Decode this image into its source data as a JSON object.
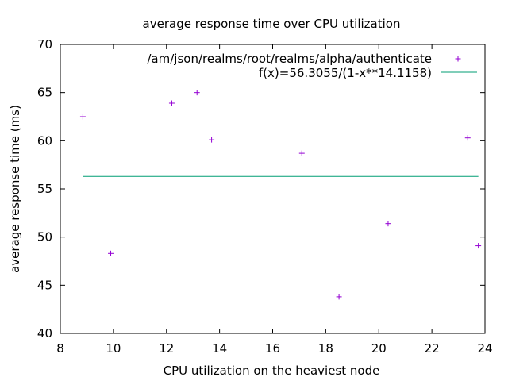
{
  "chart_data": {
    "type": "scatter",
    "title": "average response time over CPU utilization",
    "xlabel": "CPU utilization on the heaviest node",
    "ylabel": "average response time (ms)",
    "xlim": [
      8,
      24
    ],
    "ylim": [
      40,
      70
    ],
    "xticks": [
      8,
      10,
      12,
      14,
      16,
      18,
      20,
      22,
      24
    ],
    "yticks": [
      40,
      45,
      50,
      55,
      60,
      65,
      70
    ],
    "grid": false,
    "legend_position": "top-right",
    "series": [
      {
        "name": "/am/json/realms/root/realms/alpha/authenticate",
        "type": "scatter",
        "marker": "+",
        "color": "#9400d3",
        "points": [
          {
            "x": 8.85,
            "y": 62.5
          },
          {
            "x": 9.9,
            "y": 48.3
          },
          {
            "x": 12.2,
            "y": 63.9
          },
          {
            "x": 13.15,
            "y": 65.0
          },
          {
            "x": 13.7,
            "y": 60.1
          },
          {
            "x": 17.1,
            "y": 58.7
          },
          {
            "x": 18.5,
            "y": 43.8
          },
          {
            "x": 20.35,
            "y": 51.4
          },
          {
            "x": 23.35,
            "y": 60.3
          },
          {
            "x": 23.75,
            "y": 49.1
          }
        ]
      },
      {
        "name": "f(x)=56.3055/(1-x**14.1158)",
        "type": "line",
        "color": "#009e73",
        "x_range": [
          8.85,
          23.75
        ],
        "y_value": 56.3
      }
    ]
  }
}
